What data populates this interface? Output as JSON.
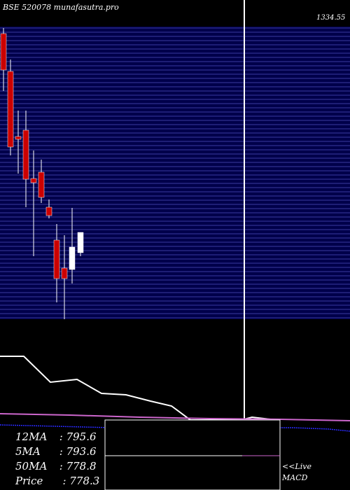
{
  "header": {
    "title": "BSE 520078 munafasutra.pro"
  },
  "price_axis": {
    "top_label": "1334.55"
  },
  "ma_panel": {
    "rows": [
      {
        "label": "12MA",
        "sep": " : ",
        "value": "795.6"
      },
      {
        "label": "5MA",
        "sep": " : ",
        "value": "793.6"
      },
      {
        "label": "50MA",
        "sep": " : ",
        "value": "778.8"
      },
      {
        "label": "Price",
        "sep": "  : ",
        "value": "778.3"
      }
    ]
  },
  "links": {
    "live": "<<Live",
    "macd": "MACD"
  },
  "colors": {
    "grid": "#1a1a5e",
    "grid_bg": "#00004a",
    "bear": "#cc0000",
    "bull": "#ffffff",
    "ma_line": "#cc66cc",
    "signal": "#0000cc"
  },
  "chart_data": {
    "type": "candlestick",
    "candles": [
      {
        "dir": "bear"
      },
      {
        "dir": "bear"
      },
      {
        "dir": "bear"
      },
      {
        "dir": "bear"
      },
      {
        "dir": "bear"
      },
      {
        "dir": "bear"
      },
      {
        "dir": "bear"
      },
      {
        "dir": "bear"
      },
      {
        "dir": "bear"
      },
      {
        "dir": "bull"
      },
      {
        "dir": "bull"
      },
      {
        "dir": "bear"
      }
    ]
  }
}
